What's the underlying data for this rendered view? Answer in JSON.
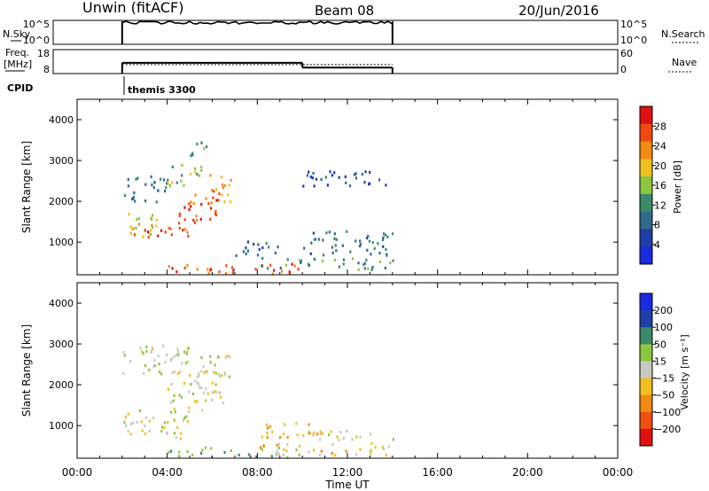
{
  "header": {
    "title": "Unwin (fitACF)",
    "beam": "Beam 08",
    "date": "20/Jun/2016"
  },
  "colors": {
    "power_scale": [
      "#1a2ae0",
      "#1f3fa8",
      "#2e6a8a",
      "#3b8a6a",
      "#8cc63f",
      "#f0c020",
      "#f08a10",
      "#f04a10",
      "#e01010"
    ],
    "velocity_scale": [
      "#e01010",
      "#f05010",
      "#f08a10",
      "#f0c020",
      "#c8c8c0",
      "#8cc63f",
      "#3b8a6a",
      "#1f3fa8",
      "#1a2ae0"
    ]
  },
  "strip_panels": {
    "nsky": {
      "label": "N.Sky",
      "left_ticks": [
        "10^5",
        "10^0"
      ],
      "right_ticks": [
        "10^5",
        "10^0"
      ],
      "right_label": "N.Search",
      "active_window": [
        "02:00",
        "14:00"
      ]
    },
    "freq": {
      "label_lines": [
        "Freq.",
        "[MHz]"
      ],
      "left_ticks": [
        "18",
        "8"
      ],
      "right_ticks": [
        "60",
        "0"
      ],
      "right_label": "Nave",
      "active_window": [
        "02:00",
        "14:00"
      ],
      "freq_step": [
        {
          "from": "02:00",
          "to": "10:00",
          "level": 0.45
        },
        {
          "from": "10:00",
          "to": "14:00",
          "level": 0.25
        }
      ]
    },
    "cpid": {
      "label": "CPID",
      "program": "themis 3300"
    }
  },
  "chart_data": [
    {
      "type": "heatmap",
      "name": "power",
      "xlabel": "",
      "ylabel": "Slant Range [km]",
      "xlim": [
        "00:00",
        "24:00"
      ],
      "ylim": [
        200,
        4500
      ],
      "y_ticks": [
        1000,
        2000,
        3000,
        4000
      ],
      "colorbar": {
        "label": "Power [dB]",
        "ticks": [
          4,
          8,
          12,
          16,
          20,
          24,
          28
        ],
        "range": [
          0,
          32
        ]
      },
      "regions": [
        {
          "t": [
            2.0,
            3.5
          ],
          "r": [
            1100,
            1800
          ],
          "v": 18
        },
        {
          "t": [
            2.5,
            5.0
          ],
          "r": [
            1100,
            1500
          ],
          "v": 27
        },
        {
          "t": [
            4.5,
            6.5
          ],
          "r": [
            1500,
            2200
          ],
          "v": 26
        },
        {
          "t": [
            5.5,
            6.8
          ],
          "r": [
            2000,
            2700
          ],
          "v": 22
        },
        {
          "t": [
            2.0,
            4.0
          ],
          "r": [
            2000,
            2700
          ],
          "v": 10
        },
        {
          "t": [
            4.0,
            5.5
          ],
          "r": [
            2400,
            3000
          ],
          "v": 15
        },
        {
          "t": [
            5.0,
            6.0
          ],
          "r": [
            3100,
            3500
          ],
          "v": 14
        },
        {
          "t": [
            4.0,
            10.0
          ],
          "r": [
            250,
            500
          ],
          "v": 26
        },
        {
          "t": [
            8.0,
            14.0
          ],
          "r": [
            350,
            650
          ],
          "v": 13
        },
        {
          "t": [
            10.0,
            14.0
          ],
          "r": [
            700,
            1300
          ],
          "v": 9
        },
        {
          "t": [
            7.0,
            9.0
          ],
          "r": [
            700,
            1100
          ],
          "v": 8
        },
        {
          "t": [
            10.0,
            14.0
          ],
          "r": [
            2400,
            2800
          ],
          "v": 7
        }
      ]
    },
    {
      "type": "heatmap",
      "name": "velocity",
      "xlabel": "Time UT",
      "ylabel": "Slant Range [km]",
      "xlim": [
        "00:00",
        "24:00"
      ],
      "x_ticks": [
        "00:00",
        "04:00",
        "08:00",
        "12:00",
        "16:00",
        "20:00",
        "00:00"
      ],
      "ylim": [
        200,
        4500
      ],
      "y_ticks": [
        1000,
        2000,
        3000,
        4000
      ],
      "colorbar": {
        "label": "Velocity [m s⁻¹]",
        "ticks": [
          "200",
          "100",
          "50",
          "15",
          "−15",
          "−50",
          "−100",
          "−200"
        ]
      },
      "regions": [
        {
          "t": [
            2.0,
            5.0
          ],
          "r": [
            700,
            1400
          ],
          "v": 0
        },
        {
          "t": [
            4.0,
            6.5
          ],
          "r": [
            1400,
            2400
          ],
          "v": 0
        },
        {
          "t": [
            5.5,
            6.8
          ],
          "r": [
            2000,
            2800
          ],
          "v": 0
        },
        {
          "t": [
            4.0,
            10.0
          ],
          "r": [
            250,
            500
          ],
          "v": 40
        },
        {
          "t": [
            8.0,
            14.0
          ],
          "r": [
            300,
            600
          ],
          "v": -30
        },
        {
          "t": [
            10.0,
            14.0
          ],
          "r": [
            650,
            900
          ],
          "v": 0
        },
        {
          "t": [
            2.0,
            5.5
          ],
          "r": [
            2300,
            3000
          ],
          "v": 5
        },
        {
          "t": [
            8.0,
            11.0
          ],
          "r": [
            700,
            1100
          ],
          "v": -40
        }
      ]
    }
  ]
}
